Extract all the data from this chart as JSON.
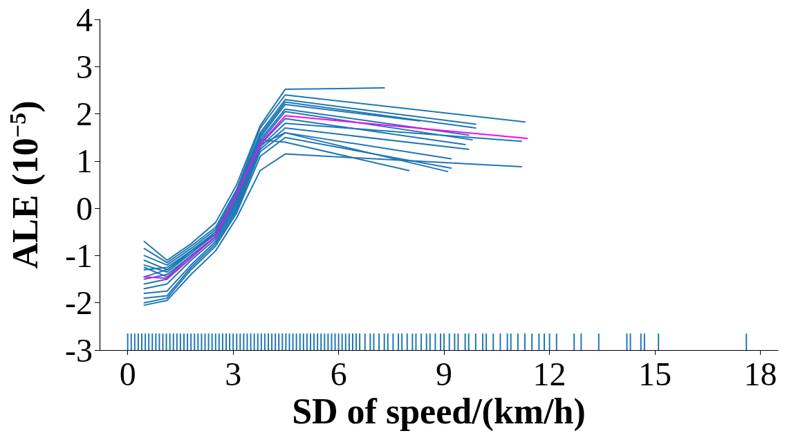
{
  "chart_data": {
    "type": "line",
    "xlabel": "SD of speed/(km/h)",
    "ylabel": "ALE (10$^{−5}$)",
    "xlim": [
      -0.8,
      18.5
    ],
    "xticks": [
      0,
      3,
      6,
      9,
      12,
      15,
      18
    ],
    "ylim": [
      -3,
      4
    ],
    "yticks": [
      -3,
      -2,
      -1,
      0,
      1,
      2,
      3,
      4
    ],
    "grid": false,
    "legend": false,
    "marker": "none",
    "line_style": "solid",
    "series": [
      {
        "color": "#1f77b4",
        "x": [
          0.47,
          1.12,
          1.8,
          2.5,
          3.1,
          3.77,
          4.48,
          7.3
        ],
        "values": [
          -0.7,
          -1.1,
          -0.75,
          -0.3,
          0.5,
          1.75,
          2.52,
          2.55
        ]
      },
      {
        "color": "#1f77b4",
        "x": [
          0.47,
          1.12,
          1.8,
          2.5,
          3.1,
          3.77,
          4.48,
          11.3
        ],
        "values": [
          -0.85,
          -1.15,
          -0.8,
          -0.4,
          0.4,
          1.7,
          2.4,
          1.83
        ]
      },
      {
        "color": "#1f77b4",
        "x": [
          0.47,
          1.12,
          1.8,
          2.5,
          3.1,
          3.77,
          4.48,
          9.9
        ],
        "values": [
          -1.0,
          -1.2,
          -0.85,
          -0.45,
          0.35,
          1.6,
          2.3,
          1.78
        ]
      },
      {
        "color": "#1f77b4",
        "x": [
          0.47,
          1.12,
          1.8,
          2.5,
          3.1,
          3.77,
          4.48,
          9.9
        ],
        "values": [
          -1.1,
          -1.3,
          -0.9,
          -0.5,
          0.3,
          1.55,
          2.25,
          1.7
        ]
      },
      {
        "color": "#1f77b4",
        "x": [
          0.47,
          1.12,
          1.8,
          2.5,
          3.1,
          3.77,
          4.48,
          8.3
        ],
        "values": [
          -1.2,
          -1.35,
          -0.95,
          -0.5,
          0.25,
          1.5,
          2.2,
          1.85
        ]
      },
      {
        "color": "#1f77b4",
        "x": [
          0.47,
          1.12,
          1.8,
          2.5,
          3.1,
          3.77,
          4.48,
          9.7
        ],
        "values": [
          -1.3,
          -1.25,
          -0.9,
          -0.55,
          0.2,
          1.45,
          2.1,
          1.55
        ]
      },
      {
        "color": "#1f77b4",
        "x": [
          0.47,
          1.12,
          1.8,
          2.5,
          3.1,
          3.77,
          4.48,
          9.8
        ],
        "values": [
          -1.5,
          -1.4,
          -1.0,
          -0.6,
          0.15,
          1.4,
          2.05,
          1.45
        ]
      },
      {
        "color": "#1f77b4",
        "x": [
          0.47,
          1.12,
          1.8,
          2.5,
          3.1,
          3.77,
          4.48,
          9.6
        ],
        "values": [
          -1.6,
          -1.5,
          -1.05,
          -0.6,
          0.1,
          1.35,
          1.9,
          1.35
        ]
      },
      {
        "color": "#1f77b4",
        "x": [
          0.47,
          1.12,
          1.8,
          2.5,
          3.1,
          3.77,
          4.48,
          11.2
        ],
        "values": [
          -1.7,
          -1.6,
          -1.1,
          -0.65,
          0.05,
          1.3,
          1.8,
          1.42
        ]
      },
      {
        "color": "#1f77b4",
        "x": [
          0.47,
          1.12,
          1.8,
          2.5,
          3.1,
          3.77,
          4.48,
          9.7
        ],
        "values": [
          -1.8,
          -1.75,
          -1.2,
          -0.7,
          0.0,
          1.25,
          1.7,
          1.25
        ]
      },
      {
        "color": "#1f77b4",
        "x": [
          0.47,
          1.12,
          1.8,
          2.5,
          3.1,
          3.77,
          4.48,
          9.2
        ],
        "values": [
          -1.9,
          -1.85,
          -1.25,
          -0.75,
          -0.05,
          1.2,
          1.6,
          1.05
        ]
      },
      {
        "color": "#1f77b4",
        "x": [
          0.47,
          1.12,
          1.8,
          2.5,
          3.1,
          3.77,
          4.48,
          9.2
        ],
        "values": [
          -2.0,
          -1.9,
          -1.3,
          -0.8,
          -0.1,
          1.1,
          1.5,
          0.85
        ]
      },
      {
        "color": "#1f77b4",
        "x": [
          0.47,
          1.12,
          1.8,
          2.5,
          3.1,
          3.77,
          4.48,
          11.2
        ],
        "values": [
          -2.05,
          -1.95,
          -1.4,
          -0.9,
          -0.2,
          0.8,
          1.15,
          0.88
        ]
      },
      {
        "color": "#1f77b4",
        "x": [
          0.47,
          1.12,
          1.8,
          2.5,
          3.1,
          3.77,
          4.48,
          8.0
        ],
        "values": [
          -1.45,
          -1.3,
          -0.95,
          -0.55,
          0.2,
          1.45,
          1.4,
          0.8
        ]
      },
      {
        "color": "#1f77b4",
        "x": [
          0.47,
          1.12,
          1.8,
          2.5,
          3.1,
          3.77,
          4.48,
          9.1
        ],
        "values": [
          -1.25,
          -1.45,
          -1.0,
          -0.6,
          0.1,
          1.35,
          1.6,
          0.78
        ]
      },
      {
        "color": "#ff00ff",
        "x": [
          0.47,
          1.12,
          1.8,
          2.5,
          3.1,
          3.77,
          4.48,
          11.36
        ],
        "values": [
          -1.45,
          -1.48,
          -1.05,
          -0.59,
          0.3,
          1.36,
          1.96,
          1.48
        ]
      },
      {
        "type": "bar",
        "color": "#1f77b4",
        "x": [
          0.0,
          0.1,
          0.2,
          0.3,
          0.4,
          0.5,
          0.6,
          0.7,
          0.8,
          0.9,
          1.0,
          1.1,
          1.2,
          1.3,
          1.4,
          1.5,
          1.6,
          1.7,
          1.8,
          1.9,
          2.0,
          2.1,
          2.2,
          2.3,
          2.4,
          2.5,
          2.6,
          2.7,
          2.8,
          2.9,
          3.0,
          3.1,
          3.2,
          3.3,
          3.4,
          3.5,
          3.6,
          3.7,
          3.8,
          3.9,
          4.0,
          4.1,
          4.2,
          4.3,
          4.4,
          4.5,
          4.6,
          4.7,
          4.8,
          4.9,
          5.0,
          5.1,
          5.2,
          5.3,
          5.4,
          5.5,
          5.6,
          5.7,
          5.8,
          5.9,
          6.0,
          6.1,
          6.2,
          6.3,
          6.4,
          6.5,
          6.6,
          6.75,
          6.9,
          7.0,
          7.15,
          7.3,
          7.4,
          7.55,
          7.7,
          7.8,
          7.95,
          8.1,
          8.2,
          8.35,
          8.5,
          8.6,
          8.75,
          8.9,
          9.0,
          9.15,
          9.3,
          9.4,
          9.6,
          9.7,
          9.9,
          10.1,
          10.2,
          10.4,
          10.6,
          10.8,
          10.9,
          11.1,
          11.3,
          11.5,
          11.7,
          11.85,
          12.0,
          12.2,
          12.7,
          12.9,
          13.4,
          14.2,
          14.3,
          14.6,
          14.7,
          15.1,
          17.6
        ],
        "base": [
          -3,
          -3,
          -3,
          -3,
          -3,
          -3,
          -3,
          -3,
          -3,
          -3,
          -3,
          -3,
          -3,
          -3,
          -3,
          -3,
          -3,
          -3,
          -3,
          -3,
          -3,
          -3,
          -3,
          -3,
          -3,
          -3,
          -3,
          -3,
          -3,
          -3,
          -3,
          -3,
          -3,
          -3,
          -3,
          -3,
          -3,
          -3,
          -3,
          -3,
          -3,
          -3,
          -3,
          -3,
          -3,
          -3,
          -3,
          -3,
          -3,
          -3,
          -3,
          -3,
          -3,
          -3,
          -3,
          -3,
          -3,
          -3,
          -3,
          -3,
          -3,
          -3,
          -3,
          -3,
          -3,
          -3,
          -3,
          -3,
          -3,
          -3,
          -3,
          -3,
          -3,
          -3,
          -3,
          -3,
          -3,
          -3,
          -3,
          -3,
          -3,
          -3,
          -3,
          -3,
          -3,
          -3,
          -3,
          -3,
          -3,
          -3,
          -3,
          -3,
          -3,
          -3,
          -3,
          -3,
          -3,
          -3,
          -3,
          -3,
          -3,
          -3,
          -3,
          -3,
          -3,
          -3,
          -3,
          -3,
          -3,
          -3,
          -3,
          -3,
          -3
        ],
        "values": [
          0.35,
          0.35,
          0.35,
          0.35,
          0.35,
          0.35,
          0.35,
          0.35,
          0.35,
          0.35,
          0.35,
          0.35,
          0.35,
          0.35,
          0.35,
          0.35,
          0.35,
          0.35,
          0.35,
          0.35,
          0.35,
          0.35,
          0.35,
          0.35,
          0.35,
          0.35,
          0.35,
          0.35,
          0.35,
          0.35,
          0.35,
          0.35,
          0.35,
          0.35,
          0.35,
          0.35,
          0.35,
          0.35,
          0.35,
          0.35,
          0.35,
          0.35,
          0.35,
          0.35,
          0.35,
          0.35,
          0.35,
          0.35,
          0.35,
          0.35,
          0.35,
          0.35,
          0.35,
          0.35,
          0.35,
          0.35,
          0.35,
          0.35,
          0.35,
          0.35,
          0.35,
          0.35,
          0.35,
          0.35,
          0.35,
          0.35,
          0.35,
          0.35,
          0.35,
          0.35,
          0.35,
          0.35,
          0.35,
          0.35,
          0.35,
          0.35,
          0.35,
          0.35,
          0.35,
          0.35,
          0.35,
          0.35,
          0.35,
          0.35,
          0.35,
          0.35,
          0.35,
          0.35,
          0.35,
          0.35,
          0.35,
          0.35,
          0.35,
          0.35,
          0.35,
          0.35,
          0.35,
          0.35,
          0.35,
          0.35,
          0.35,
          0.35,
          0.35,
          0.35,
          0.35,
          0.35,
          0.35,
          0.35,
          0.35,
          0.35,
          0.35,
          0.35,
          0.35
        ]
      }
    ]
  }
}
